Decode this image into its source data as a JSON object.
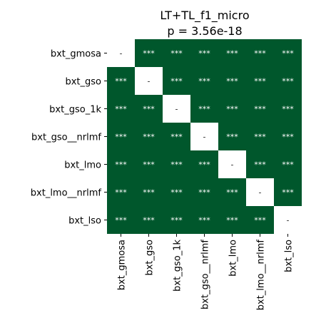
{
  "chart_data": {
    "type": "heatmap",
    "title": "LT+TL_f1_micro",
    "subtitle": "p = 3.56e-18",
    "xlabel": "",
    "ylabel": "",
    "rows": [
      "bxt_gmosa",
      "bxt_gso",
      "bxt_gso_1k",
      "bxt_gso__nrlmf",
      "bxt_lmo",
      "bxt_lmo__nrlmf",
      "bxt_lso"
    ],
    "columns": [
      "bxt_gmosa",
      "bxt_gso",
      "bxt_gso_1k",
      "bxt_gso__nrlmf",
      "bxt_lmo",
      "bxt_lmo__nrlmf",
      "bxt_lso"
    ],
    "cells": [
      [
        "-",
        "***",
        "***",
        "***",
        "***",
        "***",
        "***"
      ],
      [
        "***",
        "-",
        "***",
        "***",
        "***",
        "***",
        "***"
      ],
      [
        "***",
        "***",
        "-",
        "***",
        "***",
        "***",
        "***"
      ],
      [
        "***",
        "***",
        "***",
        "-",
        "***",
        "***",
        "***"
      ],
      [
        "***",
        "***",
        "***",
        "***",
        "-",
        "***",
        "***"
      ],
      [
        "***",
        "***",
        "***",
        "***",
        "***",
        "-",
        "***"
      ],
      [
        "***",
        "***",
        "***",
        "***",
        "***",
        "***",
        "-"
      ]
    ],
    "colorbar": false
  },
  "colors": {
    "significant": "#00572c",
    "diagonal": "#ffffff",
    "significant_text": "#ffffff",
    "diagonal_text": "#262626"
  }
}
